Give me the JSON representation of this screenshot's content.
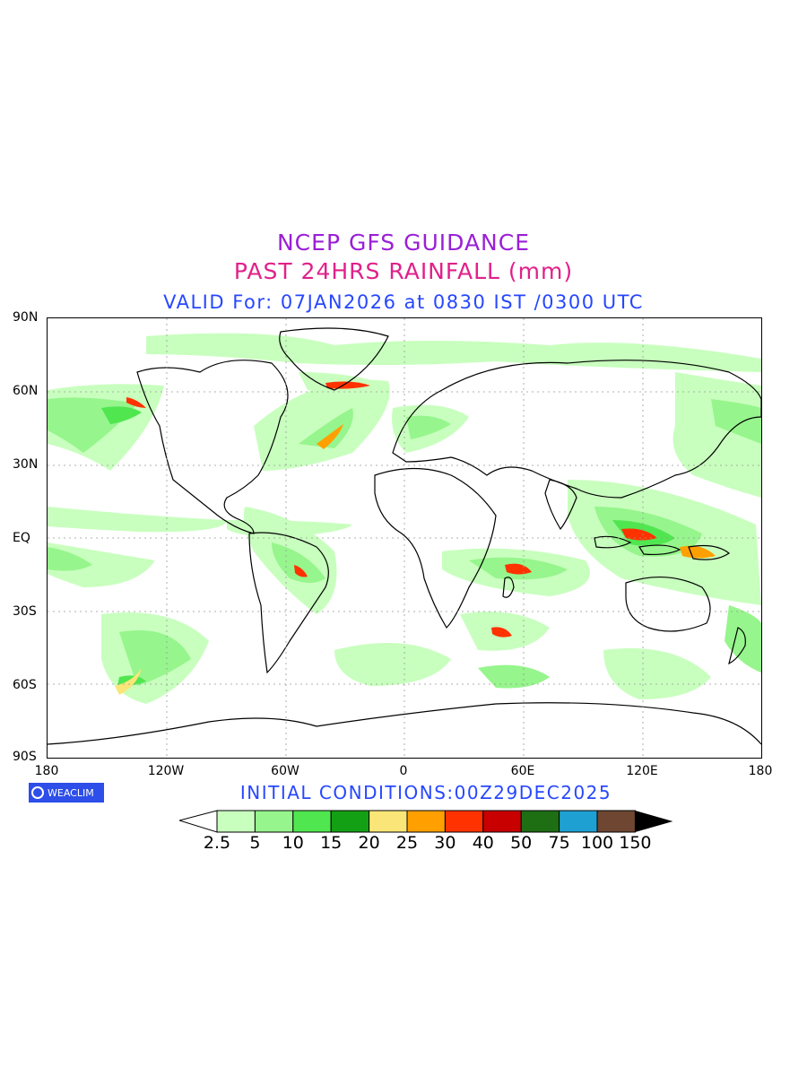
{
  "header": {
    "title": "NCEP GFS GUIDANCE",
    "subtitle": "PAST 24HRS RAINFALL (mm)",
    "valid": "VALID For: 07JAN2026 at 0830 IST /0300 UTC"
  },
  "axes": {
    "lat_labels": [
      "90N",
      "60N",
      "30N",
      "EQ",
      "30S",
      "60S",
      "90S"
    ],
    "lon_labels": [
      "180",
      "120W",
      "60W",
      "0",
      "60E",
      "120E",
      "180"
    ]
  },
  "footer": {
    "logo_text": "WEACLIM",
    "initial_conditions": "INITIAL CONDITIONS:00Z29DEC2025"
  },
  "legend": {
    "labels": [
      "2.5",
      "5",
      "10",
      "15",
      "20",
      "25",
      "30",
      "40",
      "50",
      "75",
      "100",
      "150"
    ],
    "colors": [
      "#c8ffbe",
      "#96f58c",
      "#50e650",
      "#14a014",
      "#fae678",
      "#ffa000",
      "#ff3200",
      "#c80000",
      "#1e6e14",
      "#1ea0d2",
      "#6e4632"
    ],
    "under_color": "#ffffff",
    "over_color": "#000000"
  },
  "map_colors": {
    "light": "#c8ffbe",
    "mid": "#96f58c",
    "strong": "#50e650",
    "heavy": "#14a014",
    "yellow": "#fae678",
    "orange": "#ffa000",
    "red": "#ff3200",
    "land_outline": "#000000",
    "grid": "#999999"
  }
}
